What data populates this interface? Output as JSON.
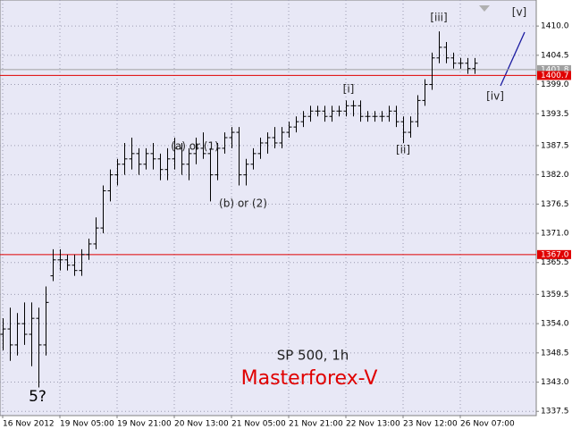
{
  "chart_data": {
    "type": "ohlc",
    "caption": "SP 500, 1h",
    "title": "Masterforex-V",
    "categories": [
      "16 Nov 2012",
      null,
      null,
      null,
      null,
      null,
      null,
      null,
      "19 Nov 05:00",
      null,
      null,
      null,
      null,
      null,
      null,
      null,
      "19 Nov 21:00",
      null,
      null,
      null,
      null,
      null,
      null,
      null,
      "20 Nov 13:00",
      null,
      null,
      null,
      null,
      null,
      null,
      null,
      "21 Nov 05:00",
      null,
      null,
      null,
      null,
      null,
      null,
      null,
      "21 Nov 21:00",
      null,
      null,
      null,
      null,
      null,
      null,
      null,
      "22 Nov 13:00",
      null,
      null,
      null,
      null,
      null,
      null,
      null,
      "23 Nov 12:00",
      null,
      null,
      null,
      null,
      null,
      null,
      null,
      "26 Nov 07:00",
      null,
      null
    ],
    "ohlc": [
      [
        1352,
        1355,
        1349,
        1353
      ],
      [
        1353,
        1357,
        1347,
        1350
      ],
      [
        1350,
        1356,
        1348,
        1354
      ],
      [
        1354,
        1358,
        1350,
        1352
      ],
      [
        1352,
        1358,
        1346,
        1355
      ],
      [
        1355,
        1357,
        1342,
        1350
      ],
      [
        1350,
        1361,
        1348,
        1358
      ],
      [
        1363,
        1368,
        1362,
        1366
      ],
      [
        1366,
        1368,
        1364,
        1366
      ],
      [
        1366,
        1367,
        1364,
        1365
      ],
      [
        1365,
        1367,
        1363,
        1364
      ],
      [
        1364,
        1368,
        1363,
        1367
      ],
      [
        1367,
        1370,
        1366,
        1369
      ],
      [
        1369,
        1374,
        1368,
        1372
      ],
      [
        1372,
        1380,
        1371,
        1379
      ],
      [
        1379,
        1383,
        1377,
        1382
      ],
      [
        1382,
        1385,
        1380,
        1384
      ],
      [
        1384,
        1388,
        1382,
        1385
      ],
      [
        1385,
        1389,
        1383,
        1386
      ],
      [
        1386,
        1387,
        1382,
        1384
      ],
      [
        1384,
        1387,
        1383,
        1386
      ],
      [
        1386,
        1388,
        1383,
        1385
      ],
      [
        1385,
        1386,
        1381,
        1383
      ],
      [
        1383,
        1387,
        1381,
        1385
      ],
      [
        1385,
        1389,
        1383,
        1387
      ],
      [
        1387,
        1388,
        1382,
        1384
      ],
      [
        1384,
        1387,
        1381,
        1386
      ],
      [
        1386,
        1389,
        1384,
        1387
      ],
      [
        1387,
        1390,
        1385,
        1386
      ],
      [
        1386,
        1387,
        1377,
        1382
      ],
      [
        1382,
        1388,
        1381,
        1387
      ],
      [
        1387,
        1390,
        1386,
        1389
      ],
      [
        1389,
        1391,
        1387,
        1390
      ],
      [
        1390,
        1391,
        1380,
        1382
      ],
      [
        1382,
        1385,
        1380,
        1384
      ],
      [
        1384,
        1387,
        1383,
        1386
      ],
      [
        1386,
        1389,
        1385,
        1388
      ],
      [
        1388,
        1390,
        1386,
        1389
      ],
      [
        1389,
        1391,
        1387,
        1388
      ],
      [
        1388,
        1391,
        1387,
        1390
      ],
      [
        1390,
        1392,
        1389,
        1391
      ],
      [
        1391,
        1393,
        1390,
        1392
      ],
      [
        1392,
        1394,
        1391,
        1393
      ],
      [
        1393,
        1395,
        1392,
        1394
      ],
      [
        1394,
        1395,
        1393,
        1394
      ],
      [
        1394,
        1395,
        1392,
        1393
      ],
      [
        1393,
        1395,
        1392,
        1394
      ],
      [
        1394,
        1395,
        1393,
        1394
      ],
      [
        1394,
        1396,
        1393,
        1395
      ],
      [
        1395,
        1396,
        1393,
        1395
      ],
      [
        1395,
        1396,
        1392,
        1393
      ],
      [
        1393,
        1394,
        1392,
        1393
      ],
      [
        1393,
        1394,
        1392,
        1393
      ],
      [
        1393,
        1394,
        1392,
        1393
      ],
      [
        1393,
        1395,
        1392,
        1394
      ],
      [
        1394,
        1395,
        1391,
        1392
      ],
      [
        1392,
        1393,
        1388,
        1390
      ],
      [
        1390,
        1393,
        1389,
        1392
      ],
      [
        1392,
        1397,
        1391,
        1396
      ],
      [
        1396,
        1400,
        1395,
        1399
      ],
      [
        1399,
        1405,
        1398,
        1404
      ],
      [
        1404,
        1409,
        1403,
        1406
      ],
      [
        1406,
        1407,
        1403,
        1404
      ],
      [
        1404,
        1405,
        1402,
        1403
      ],
      [
        1403,
        1404,
        1402,
        1403
      ],
      [
        1403,
        1404,
        1401,
        1402
      ],
      [
        1402,
        1404,
        1401,
        1403
      ]
    ],
    "color": "#000000",
    "ylim": [
      1336.7,
      1414.9
    ],
    "yticks": [
      {
        "value": 1410,
        "label": "1410.0"
      },
      1404.5,
      {
        "value": 1399,
        "label": "1399.0"
      },
      1393.5,
      1387.5,
      {
        "value": 1382,
        "label": "1382.0"
      },
      1376.5,
      {
        "value": 1371,
        "label": "1371.0"
      },
      1365.5,
      1359.5,
      {
        "value": 1354,
        "label": "1354.0"
      },
      1348.5,
      {
        "value": 1343,
        "label": "1343.0"
      },
      1337.5
    ],
    "grid": true,
    "levels": [
      {
        "value": 1401.8,
        "color": "#a0a0a0"
      },
      {
        "value": 1400.7,
        "color": "#e00000"
      },
      {
        "value": 1367,
        "label": "1367.0",
        "color": "#e00000"
      }
    ],
    "annotations": [
      "(a) or (1)",
      "(b) or (2)",
      "[i]",
      "[ii]",
      "[iii]",
      "[iv]",
      "[v]",
      "5?"
    ]
  }
}
